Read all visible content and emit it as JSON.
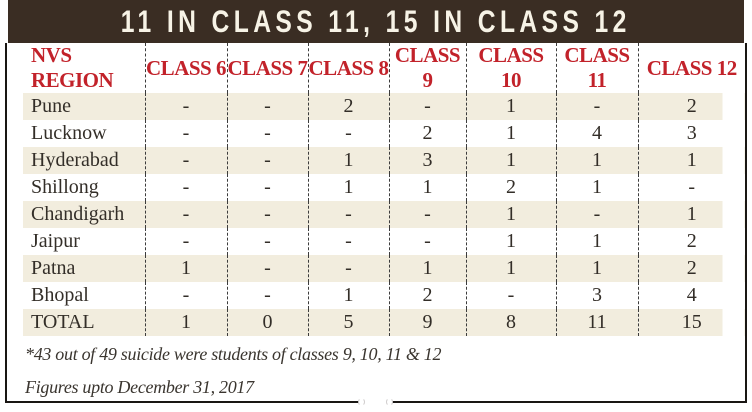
{
  "title": "11 IN CLASS 11, 15 IN CLASS 12",
  "table": {
    "columns": [
      "NVS REGION",
      "CLASS 6",
      "CLASS 7",
      "CLASS 8",
      "CLASS 9",
      "CLASS 10",
      "CLASS 11",
      "CLASS 12"
    ],
    "rows": [
      {
        "region": "Pune",
        "values": [
          "-",
          "-",
          "2",
          "-",
          "1",
          "-",
          "2"
        ],
        "shaded": true
      },
      {
        "region": "Lucknow",
        "values": [
          "-",
          "-",
          "-",
          "2",
          "1",
          "4",
          "3"
        ],
        "shaded": false
      },
      {
        "region": "Hyderabad",
        "values": [
          "-",
          "-",
          "1",
          "3",
          "1",
          "1",
          "1"
        ],
        "shaded": true
      },
      {
        "region": "Shillong",
        "values": [
          "-",
          "-",
          "1",
          "1",
          "2",
          "1",
          "-"
        ],
        "shaded": false
      },
      {
        "region": "Chandigarh",
        "values": [
          "-",
          "-",
          "-",
          "-",
          "1",
          "-",
          "1"
        ],
        "shaded": true
      },
      {
        "region": "Jaipur",
        "values": [
          "-",
          "-",
          "-",
          "-",
          "1",
          "1",
          "2"
        ],
        "shaded": false
      },
      {
        "region": "Patna",
        "values": [
          "1",
          "-",
          "-",
          "1",
          "1",
          "1",
          "2"
        ],
        "shaded": true
      },
      {
        "region": "Bhopal",
        "values": [
          "-",
          "-",
          "1",
          "2",
          "-",
          "3",
          "4"
        ],
        "shaded": false
      },
      {
        "region": "TOTAL",
        "values": [
          "1",
          "0",
          "5",
          "9",
          "8",
          "11",
          "15"
        ],
        "shaded": true
      }
    ]
  },
  "footnotes": [
    "*43 out of 49 suicide were students of classes 9, 10, 11 & 12",
    "Figures upto December 31, 2017"
  ],
  "colors": {
    "title_bar": "#3a2d23",
    "title_text": "#f7f3e6",
    "header_text": "#c2222a",
    "row_shade": "#f2edde",
    "body_text": "#332e28",
    "border": "#191613"
  }
}
